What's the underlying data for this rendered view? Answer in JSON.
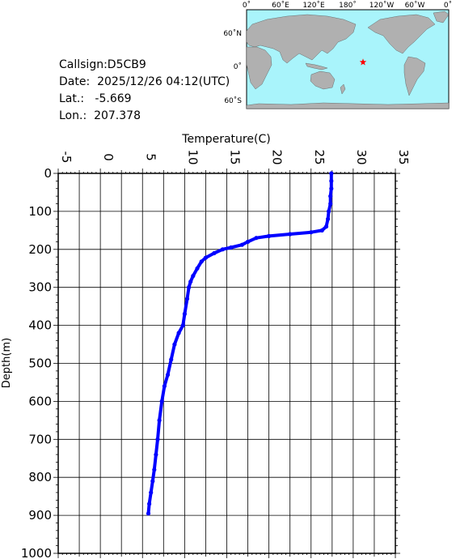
{
  "station": {
    "callsign_label": "Callsign:",
    "callsign": "D5CB9",
    "date_label": "Date:",
    "date": "2025/12/26 04:12(UTC)",
    "lat_label": "Lat.:",
    "lat": "-5.669",
    "lon_label": "Lon.:",
    "lon": "207.378"
  },
  "map": {
    "top_ticks": [
      "0˚",
      "60˚E",
      "120˚E",
      "180˚",
      "120˚W",
      "60˚W",
      "0˚"
    ],
    "left_ticks": [
      "60˚N",
      "0˚",
      "60˚S"
    ],
    "ocean_color": "#a9f4fb",
    "land_color": "#b0b0b0",
    "marker_color": "#ff0000",
    "marker_icon": "star-icon"
  },
  "chart_data": {
    "type": "line",
    "xlabel": "Temperature(C)",
    "ylabel": "Depth(m)",
    "xlim": [
      -5,
      35
    ],
    "ylim": [
      1000,
      0
    ],
    "x_ticks": [
      "-5",
      "0",
      "5",
      "10",
      "15",
      "20",
      "25",
      "30",
      "35"
    ],
    "y_ticks": [
      "0",
      "100",
      "200",
      "300",
      "400",
      "500",
      "600",
      "700",
      "800",
      "900",
      "1000"
    ],
    "grid": true,
    "series": [
      {
        "color": "#0000ff",
        "points": [
          [
            27.4,
            0
          ],
          [
            27.4,
            20
          ],
          [
            27.4,
            40
          ],
          [
            27.3,
            60
          ],
          [
            27.3,
            80
          ],
          [
            27.1,
            100
          ],
          [
            27.0,
            120
          ],
          [
            26.8,
            140
          ],
          [
            26.3,
            150
          ],
          [
            25.0,
            155
          ],
          [
            22.5,
            160
          ],
          [
            20.0,
            165
          ],
          [
            18.5,
            170
          ],
          [
            17.5,
            180
          ],
          [
            16.8,
            188
          ],
          [
            15.5,
            195
          ],
          [
            14.5,
            200
          ],
          [
            13.5,
            210
          ],
          [
            12.5,
            222
          ],
          [
            12.0,
            232
          ],
          [
            11.5,
            250
          ],
          [
            11.0,
            270
          ],
          [
            10.7,
            285
          ],
          [
            10.5,
            300
          ],
          [
            10.3,
            330
          ],
          [
            10.0,
            370
          ],
          [
            9.8,
            400
          ],
          [
            9.3,
            420
          ],
          [
            8.8,
            450
          ],
          [
            8.4,
            490
          ],
          [
            8.0,
            530
          ],
          [
            7.6,
            560
          ],
          [
            7.3,
            600
          ],
          [
            7.0,
            650
          ],
          [
            6.8,
            700
          ],
          [
            6.6,
            740
          ],
          [
            6.4,
            780
          ],
          [
            6.2,
            810
          ],
          [
            6.0,
            840
          ],
          [
            5.8,
            870
          ],
          [
            5.7,
            895
          ]
        ]
      }
    ]
  }
}
